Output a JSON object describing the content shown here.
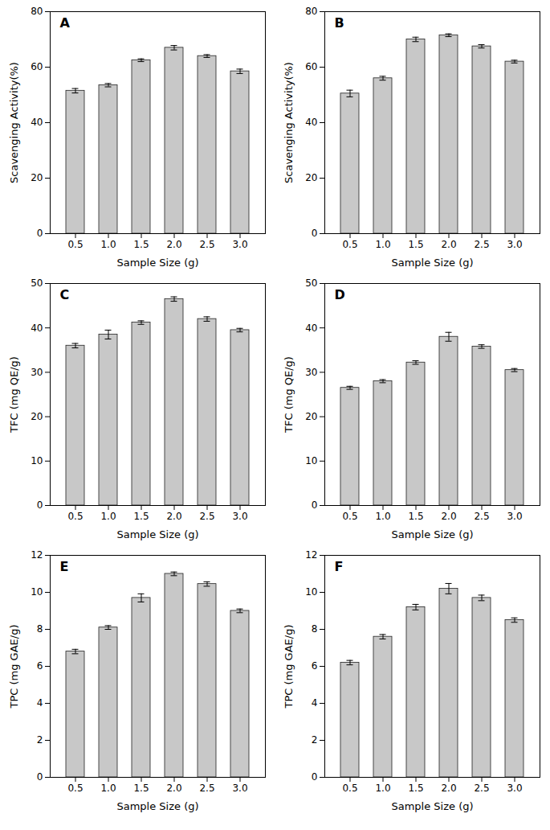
{
  "chart_data": [
    {
      "type": "bar",
      "title": "A",
      "categories": [
        "0.5",
        "1.0",
        "1.5",
        "2.0",
        "2.5",
        "3.0"
      ],
      "values": [
        51.5,
        53.5,
        62.5,
        67.0,
        64.0,
        58.5
      ],
      "errors": [
        0.8,
        0.6,
        0.5,
        0.8,
        0.5,
        0.8
      ],
      "color": "#C8C8C8",
      "xlabel": "Sample Size (g)",
      "ylabel": "Scavenging Activity(%)",
      "ylim": [
        0,
        80
      ],
      "yticks": [
        0,
        20,
        40,
        60,
        80
      ],
      "grid": false
    },
    {
      "type": "bar",
      "title": "B",
      "categories": [
        "0.5",
        "1.0",
        "1.5",
        "2.0",
        "2.5",
        "3.0"
      ],
      "values": [
        50.5,
        56.0,
        70.0,
        71.5,
        67.5,
        62.0
      ],
      "errors": [
        1.2,
        0.7,
        0.8,
        0.5,
        0.6,
        0.5
      ],
      "color": "#C8C8C8",
      "xlabel": "Sample Size (g)",
      "ylabel": "Scavenging Activity(%)",
      "ylim": [
        0,
        80
      ],
      "yticks": [
        0,
        20,
        40,
        60,
        80
      ],
      "grid": false
    },
    {
      "type": "bar",
      "title": "C",
      "categories": [
        "0.5",
        "1.0",
        "1.5",
        "2.0",
        "2.5",
        "3.0"
      ],
      "values": [
        36.0,
        38.5,
        41.2,
        46.5,
        42.0,
        39.5
      ],
      "errors": [
        0.5,
        1.0,
        0.4,
        0.5,
        0.5,
        0.4
      ],
      "color": "#C8C8C8",
      "xlabel": "Sample Size (g)",
      "ylabel": "TFC (mg QE/g)",
      "ylim": [
        0,
        50
      ],
      "yticks": [
        0,
        10,
        20,
        30,
        40,
        50
      ],
      "grid": false
    },
    {
      "type": "bar",
      "title": "D",
      "categories": [
        "0.5",
        "1.0",
        "1.5",
        "2.0",
        "2.5",
        "3.0"
      ],
      "values": [
        26.5,
        28.0,
        32.2,
        38.0,
        35.8,
        30.5
      ],
      "errors": [
        0.35,
        0.35,
        0.4,
        1.0,
        0.4,
        0.35
      ],
      "color": "#C8C8C8",
      "xlabel": "Sample Size (g)",
      "ylabel": "TFC (mg QE/g)",
      "ylim": [
        0,
        50
      ],
      "yticks": [
        0,
        10,
        20,
        30,
        40,
        50
      ],
      "grid": false
    },
    {
      "type": "bar",
      "title": "E",
      "categories": [
        "0.5",
        "1.0",
        "1.5",
        "2.0",
        "2.5",
        "3.0"
      ],
      "values": [
        6.8,
        8.1,
        9.7,
        11.0,
        10.45,
        9.0
      ],
      "errors": [
        0.12,
        0.1,
        0.22,
        0.1,
        0.12,
        0.1
      ],
      "color": "#C8C8C8",
      "xlabel": "Sample Size (g)",
      "ylabel": "TPC (mg GAE/g)",
      "ylim": [
        0,
        12
      ],
      "yticks": [
        0,
        2,
        4,
        6,
        8,
        10,
        12
      ],
      "grid": false
    },
    {
      "type": "bar",
      "title": "F",
      "categories": [
        "0.5",
        "1.0",
        "1.5",
        "2.0",
        "2.5",
        "3.0"
      ],
      "values": [
        6.2,
        7.6,
        9.2,
        10.2,
        9.7,
        8.5
      ],
      "errors": [
        0.12,
        0.12,
        0.15,
        0.28,
        0.15,
        0.12
      ],
      "color": "#C8C8C8",
      "xlabel": "Sample Size (g)",
      "ylabel": "TPC (mg GAE/g)",
      "ylim": [
        0,
        12
      ],
      "yticks": [
        0,
        2,
        4,
        6,
        8,
        10,
        12
      ],
      "grid": false
    }
  ]
}
